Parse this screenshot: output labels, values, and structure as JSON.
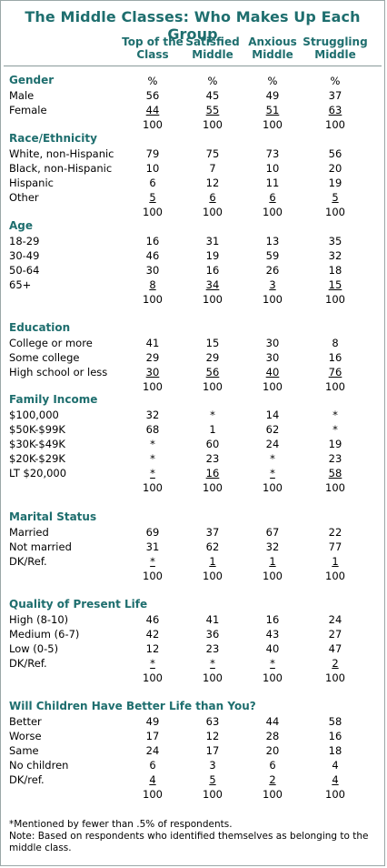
{
  "title": "The Middle Classes: Who Makes Up Each Group",
  "columns": [
    {
      "line1": "Top of the",
      "line2": "Class"
    },
    {
      "line1": "Satisfied",
      "line2": "Middle"
    },
    {
      "line1": "Anxious",
      "line2": "Middle"
    },
    {
      "line1": "Struggling",
      "line2": "Middle"
    }
  ],
  "sections": [
    {
      "title": "Gender",
      "header": [
        "%",
        "%",
        "%",
        "%"
      ],
      "rows": [
        [
          "Male",
          "56",
          "45",
          "49",
          "37"
        ],
        [
          "Female",
          "44",
          "55",
          "51",
          "63"
        ]
      ],
      "total": [
        "100",
        "100",
        "100",
        "100"
      ]
    },
    {
      "title": "Race/Ethnicity",
      "rows": [
        [
          "White, non-Hispanic",
          "79",
          "75",
          "73",
          "56"
        ],
        [
          "Black, non-Hispanic",
          "10",
          "7",
          "10",
          "20"
        ],
        [
          "Hispanic",
          "6",
          "12",
          "11",
          "19"
        ],
        [
          "Other",
          "5",
          "6",
          "6",
          "5"
        ]
      ],
      "total": [
        "100",
        "100",
        "100",
        "100"
      ]
    },
    {
      "title": "Age",
      "rows": [
        [
          "18-29",
          "16",
          "31",
          "13",
          "35"
        ],
        [
          "30-49",
          "46",
          "19",
          "59",
          "32"
        ],
        [
          "50-64",
          "30",
          "16",
          "26",
          "18"
        ],
        [
          "65+",
          "8",
          "34",
          "3",
          "15"
        ]
      ],
      "total": [
        "100",
        "100",
        "100",
        "100"
      ]
    },
    {
      "title": "Education",
      "rows": [
        [
          "College or more",
          "41",
          "15",
          "30",
          "8"
        ],
        [
          "Some college",
          "29",
          "29",
          "30",
          "16"
        ],
        [
          "High school or less",
          "30",
          "56",
          "40",
          "76"
        ]
      ],
      "total": [
        "100",
        "100",
        "100",
        "100"
      ]
    },
    {
      "title": "Family Income",
      "rows": [
        [
          "$100,000",
          "32",
          "*",
          "14",
          "*"
        ],
        [
          "$50K-$99K",
          "68",
          "1",
          "62",
          "*"
        ],
        [
          "$30K-$49K",
          "*",
          "60",
          "24",
          "19"
        ],
        [
          "$20K-$29K",
          "*",
          "23",
          "*",
          "23"
        ],
        [
          "LT $20,000",
          "*",
          "16",
          "*",
          "58"
        ]
      ],
      "total": [
        "100",
        "100",
        "100",
        "100"
      ]
    },
    {
      "title": "Marital Status",
      "rows": [
        [
          "Married",
          "69",
          "37",
          "67",
          "22"
        ],
        [
          "Not married",
          "31",
          "62",
          "32",
          "77"
        ],
        [
          "DK/Ref.",
          "*",
          "1",
          "1",
          "1"
        ]
      ],
      "total": [
        "100",
        "100",
        "100",
        "100"
      ]
    },
    {
      "title": "Quality of Present Life",
      "rows": [
        [
          "High (8-10)",
          "46",
          "41",
          "16",
          "24"
        ],
        [
          "Medium (6-7)",
          "42",
          "36",
          "43",
          "27"
        ],
        [
          "Low (0-5)",
          "12",
          "23",
          "40",
          "47"
        ],
        [
          "DK/Ref.",
          "*",
          "*",
          "*",
          "2"
        ]
      ],
      "total": [
        "100",
        "100",
        "100",
        "100"
      ]
    },
    {
      "title": "Will Children Have Better Life than You?",
      "rows": [
        [
          "Better",
          "49",
          "63",
          "44",
          "58"
        ],
        [
          "Worse",
          "17",
          "12",
          "28",
          "16"
        ],
        [
          "Same",
          "24",
          "17",
          "20",
          "18"
        ],
        [
          "No children",
          "6",
          "3",
          "6",
          "4"
        ],
        [
          "DK/ref.",
          "4",
          "5",
          "2",
          "4"
        ]
      ],
      "total": [
        "100",
        "100",
        "100",
        "100"
      ]
    }
  ],
  "footnotes": {
    "asterisk": "*Mentioned by fewer than .5% of respondents.",
    "note": "Note: Based on respondents who identified themselves as belonging to the middle class."
  }
}
